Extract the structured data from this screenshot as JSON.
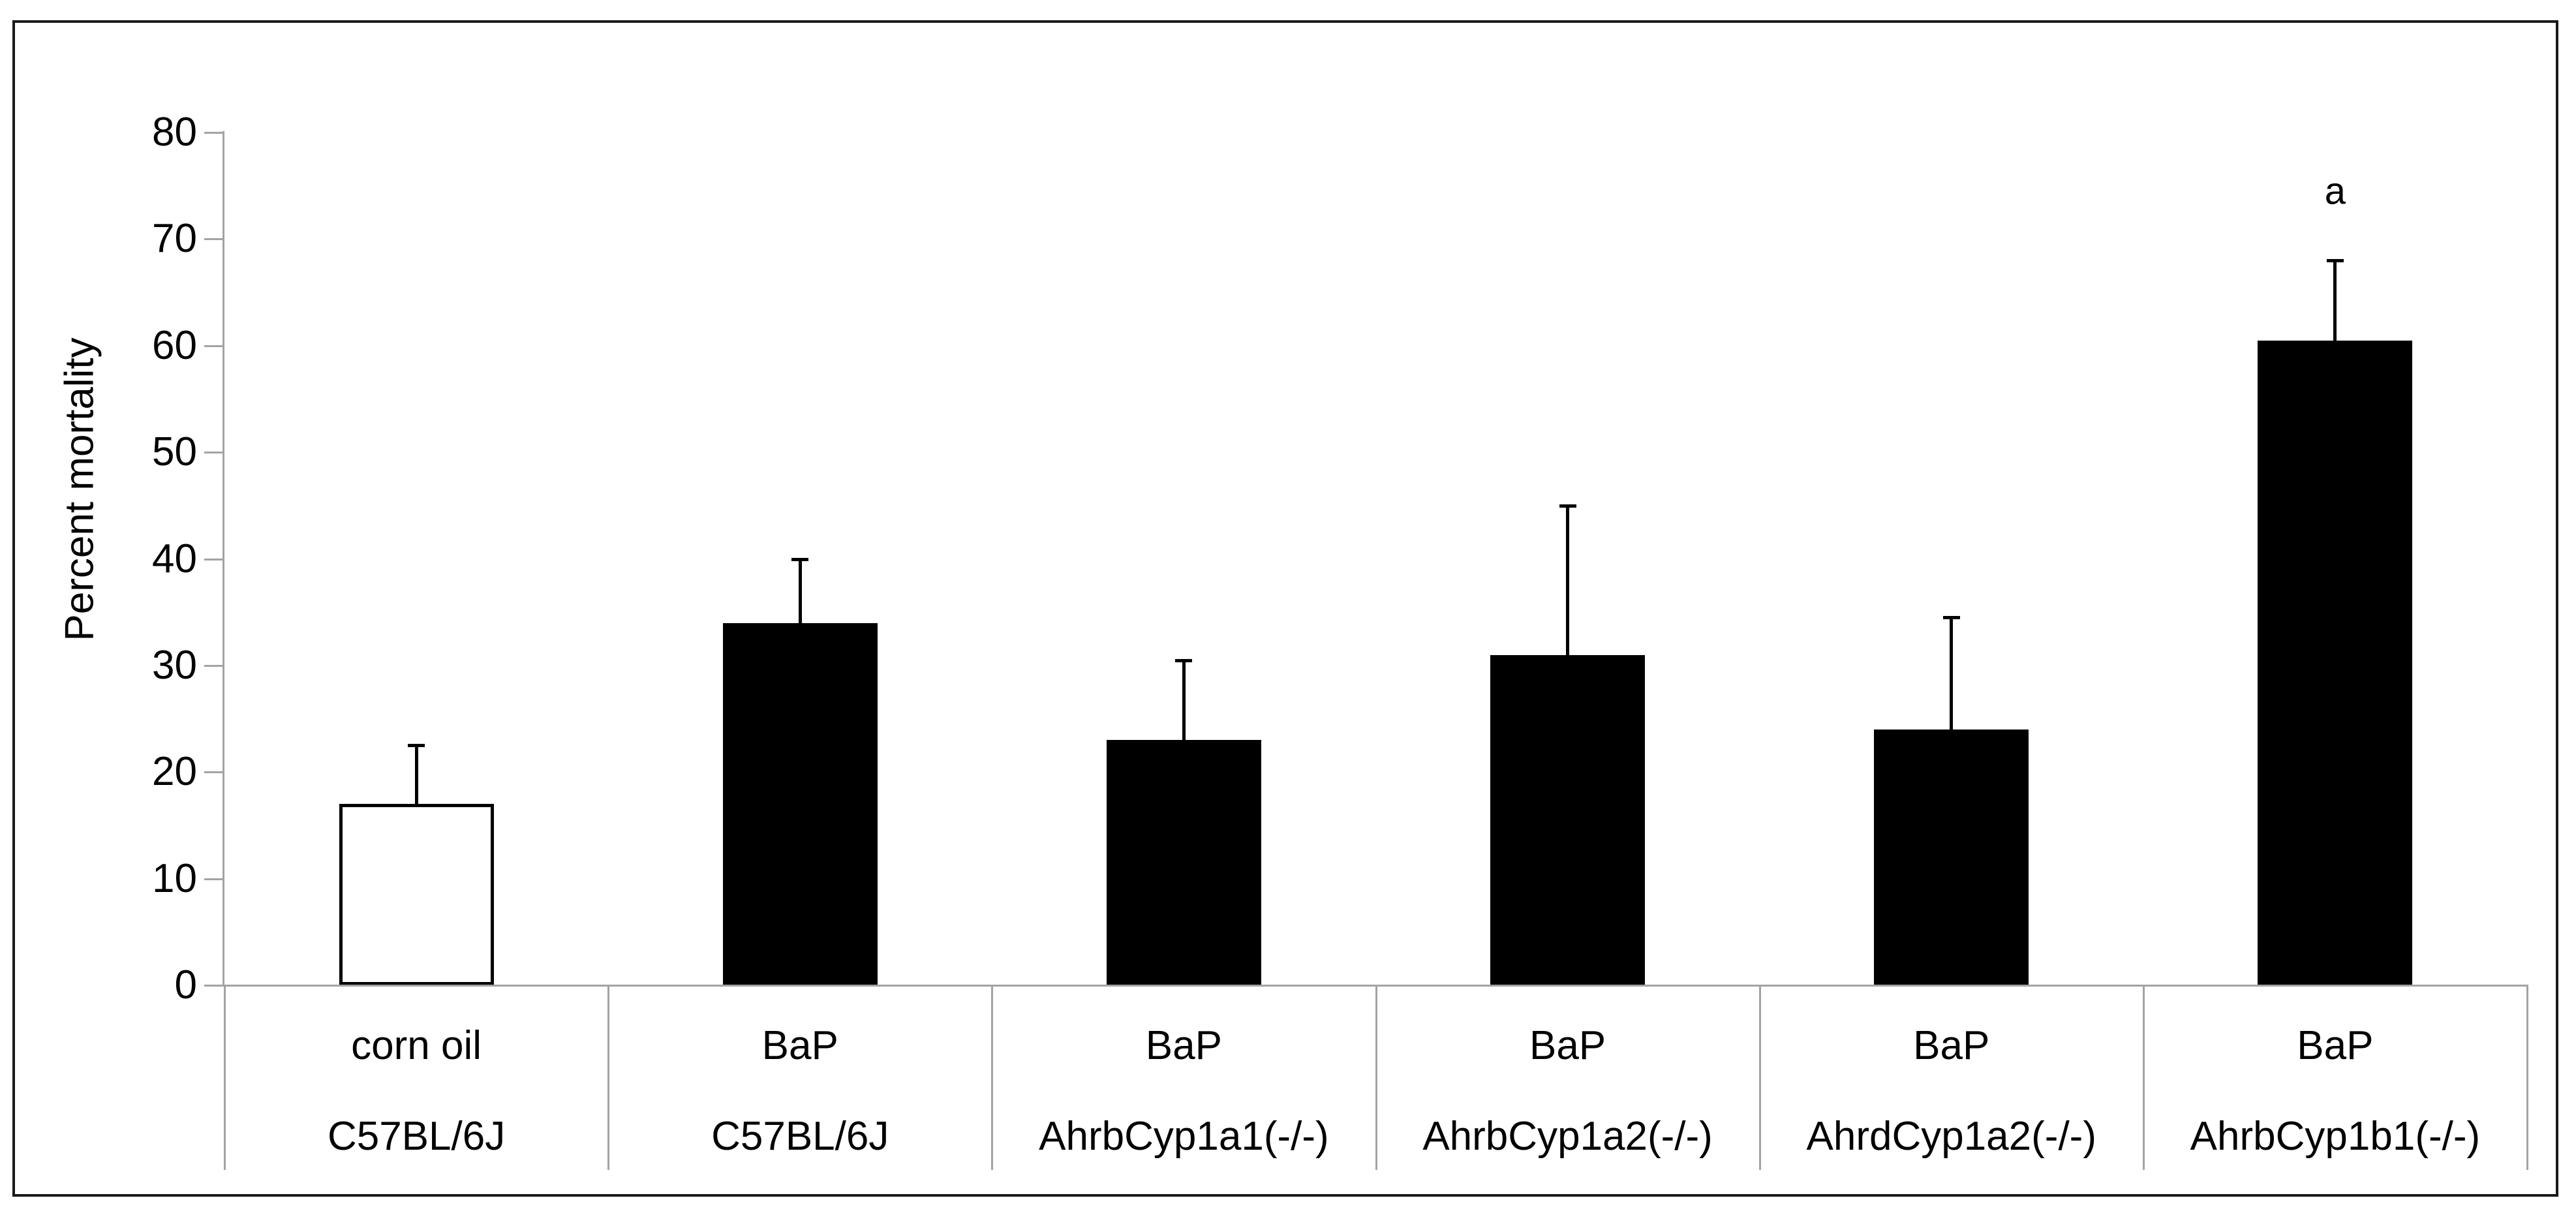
{
  "chart_data": {
    "type": "bar",
    "title": "",
    "ylabel": "Percent mortality",
    "xlabel": "",
    "ylim": [
      0,
      80
    ],
    "yticks": [
      0,
      10,
      20,
      30,
      40,
      50,
      60,
      70,
      80
    ],
    "grid": false,
    "legend_position": "none",
    "axis_color": "#a3a3a3",
    "bar_outline_color": "#000000",
    "categories": [
      {
        "treatment": "corn oil",
        "genotype": "C57BL/6J"
      },
      {
        "treatment": "BaP",
        "genotype": "C57BL/6J"
      },
      {
        "treatment": "BaP",
        "genotype": "AhrbCyp1a1(-/-)"
      },
      {
        "treatment": "BaP",
        "genotype": "AhrbCyp1a2(-/-)"
      },
      {
        "treatment": "BaP",
        "genotype": "AhrdCyp1a2(-/-)"
      },
      {
        "treatment": "BaP",
        "genotype": "AhrbCyp1b1(-/-)"
      }
    ],
    "series": [
      {
        "name": "Percent mortality",
        "values": [
          17,
          34,
          23,
          31,
          24,
          60.5
        ],
        "error_upper": [
          5.5,
          6,
          7.5,
          14,
          10.5,
          7.5
        ],
        "fills": [
          "#ffffff",
          "#000000",
          "#000000",
          "#000000",
          "#000000",
          "#000000"
        ]
      }
    ],
    "annotations": [
      {
        "text": "a",
        "category_index": 5
      }
    ]
  }
}
